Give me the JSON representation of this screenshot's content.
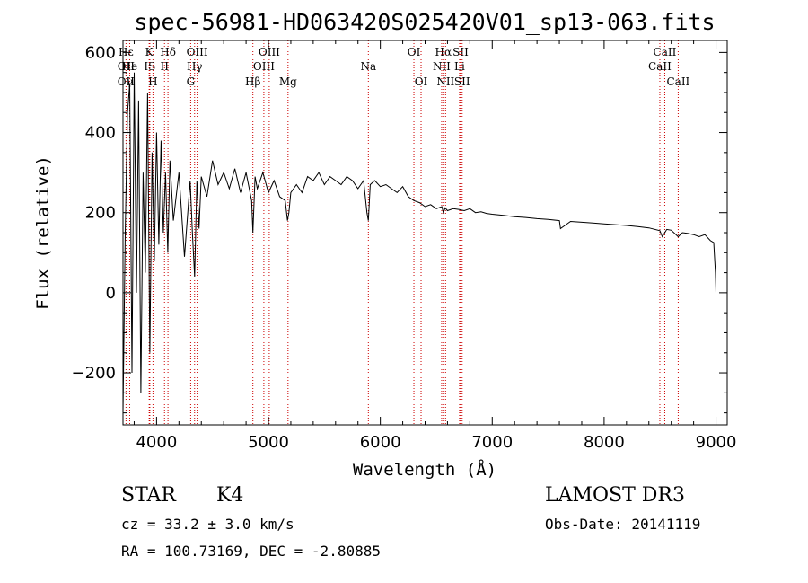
{
  "chart_data": {
    "type": "line",
    "title": "spec-56981-HD063420S025420V01_sp13-063.fits",
    "xlabel": "Wavelength (Å)",
    "ylabel": "Flux (relative)",
    "xlim": [
      3700,
      9100
    ],
    "ylim": [
      -330,
      630
    ],
    "xticks": [
      4000,
      5000,
      6000,
      7000,
      8000,
      9000
    ],
    "yticks": [
      -200,
      0,
      200,
      400,
      600
    ],
    "series": [
      {
        "name": "flux",
        "x": [
          3700,
          3720,
          3740,
          3760,
          3780,
          3800,
          3820,
          3840,
          3860,
          3880,
          3900,
          3920,
          3940,
          3960,
          3980,
          4000,
          4020,
          4040,
          4060,
          4080,
          4100,
          4120,
          4150,
          4200,
          4250,
          4300,
          4320,
          4340,
          4360,
          4380,
          4400,
          4450,
          4500,
          4550,
          4600,
          4650,
          4700,
          4750,
          4800,
          4850,
          4861,
          4880,
          4900,
          4950,
          5000,
          5050,
          5100,
          5150,
          5170,
          5183,
          5200,
          5250,
          5300,
          5350,
          5400,
          5450,
          5500,
          5550,
          5600,
          5650,
          5700,
          5750,
          5800,
          5850,
          5880,
          5893,
          5910,
          5950,
          6000,
          6050,
          6100,
          6150,
          6200,
          6250,
          6300,
          6350,
          6400,
          6450,
          6500,
          6550,
          6563,
          6580,
          6600,
          6650,
          6700,
          6750,
          6800,
          6850,
          6900,
          6950,
          7000,
          7100,
          7200,
          7300,
          7400,
          7500,
          7600,
          7610,
          7700,
          7800,
          7900,
          8000,
          8100,
          8200,
          8300,
          8400,
          8498,
          8520,
          8542,
          8560,
          8600,
          8662,
          8700,
          8750,
          8800,
          8850,
          8900,
          8950,
          8980,
          8995,
          9000
        ],
        "y": [
          -300,
          150,
          450,
          520,
          -200,
          550,
          0,
          480,
          -250,
          300,
          50,
          500,
          -150,
          350,
          80,
          400,
          120,
          380,
          150,
          300,
          100,
          330,
          180,
          300,
          90,
          280,
          150,
          40,
          280,
          160,
          290,
          240,
          330,
          270,
          300,
          260,
          310,
          250,
          300,
          230,
          150,
          290,
          260,
          300,
          250,
          280,
          240,
          230,
          180,
          200,
          250,
          270,
          250,
          290,
          280,
          300,
          270,
          290,
          280,
          270,
          290,
          280,
          260,
          280,
          200,
          180,
          270,
          280,
          265,
          270,
          260,
          250,
          265,
          240,
          230,
          225,
          215,
          220,
          210,
          215,
          200,
          212,
          205,
          210,
          208,
          205,
          210,
          200,
          202,
          198,
          196,
          193,
          190,
          188,
          185,
          183,
          180,
          160,
          178,
          176,
          174,
          172,
          170,
          168,
          165,
          162,
          155,
          140,
          150,
          158,
          156,
          140,
          150,
          148,
          145,
          140,
          145,
          130,
          125,
          50,
          0
        ]
      }
    ],
    "spectral_lines": [
      {
        "label": "Hε",
        "wavelength": 3727,
        "row": 1
      },
      {
        "label": "OII",
        "wavelength": 3727,
        "row": 2
      },
      {
        "label": "OII",
        "wavelength": 3727,
        "row": 3
      },
      {
        "label": "He",
        "wavelength": 3760,
        "row": 2
      },
      {
        "label": "γ",
        "wavelength": 3760,
        "row": 3
      },
      {
        "label": "K",
        "wavelength": 3934,
        "row": 1
      },
      {
        "label": "H",
        "wavelength": 3968,
        "row": 3
      },
      {
        "label": "IS",
        "wavelength": 3940,
        "row": 2
      },
      {
        "label": "II",
        "wavelength": 4071,
        "row": 2
      },
      {
        "label": "Hδ",
        "wavelength": 4102,
        "row": 1
      },
      {
        "label": "OIII",
        "wavelength": 4363,
        "row": 1
      },
      {
        "label": "Hγ",
        "wavelength": 4340,
        "row": 2
      },
      {
        "label": "G",
        "wavelength": 4305,
        "row": 3
      },
      {
        "label": "Hβ",
        "wavelength": 4861,
        "row": 3
      },
      {
        "label": "OIII",
        "wavelength": 4959,
        "row": 2
      },
      {
        "label": "OIII",
        "wavelength": 5007,
        "row": 1
      },
      {
        "label": "Mg",
        "wavelength": 5175,
        "row": 3
      },
      {
        "label": "Na",
        "wavelength": 5893,
        "row": 2
      },
      {
        "label": "OI",
        "wavelength": 6300,
        "row": 1
      },
      {
        "label": "OI",
        "wavelength": 6364,
        "row": 3
      },
      {
        "label": "Hα",
        "wavelength": 6563,
        "row": 1
      },
      {
        "label": "NII",
        "wavelength": 6548,
        "row": 2
      },
      {
        "label": "NII",
        "wavelength": 6583,
        "row": 3
      },
      {
        "label": "SII",
        "wavelength": 6717,
        "row": 1
      },
      {
        "label": "Li",
        "wavelength": 6708,
        "row": 2
      },
      {
        "label": "SII",
        "wavelength": 6731,
        "row": 3
      },
      {
        "label": "CaII",
        "wavelength": 8542,
        "row": 1
      },
      {
        "label": "CaII",
        "wavelength": 8498,
        "row": 2
      },
      {
        "label": "CaII",
        "wavelength": 8662,
        "row": 3
      }
    ]
  },
  "info": {
    "object_type": "STAR",
    "subclass": "K4",
    "survey": "LAMOST DR3",
    "redshift_text": "cz = 33.2 ± 3.0 km/s",
    "obs_date_text": "Obs-Date: 20141119",
    "coords_text": "RA = 100.73169, DEC =  -2.80885"
  }
}
